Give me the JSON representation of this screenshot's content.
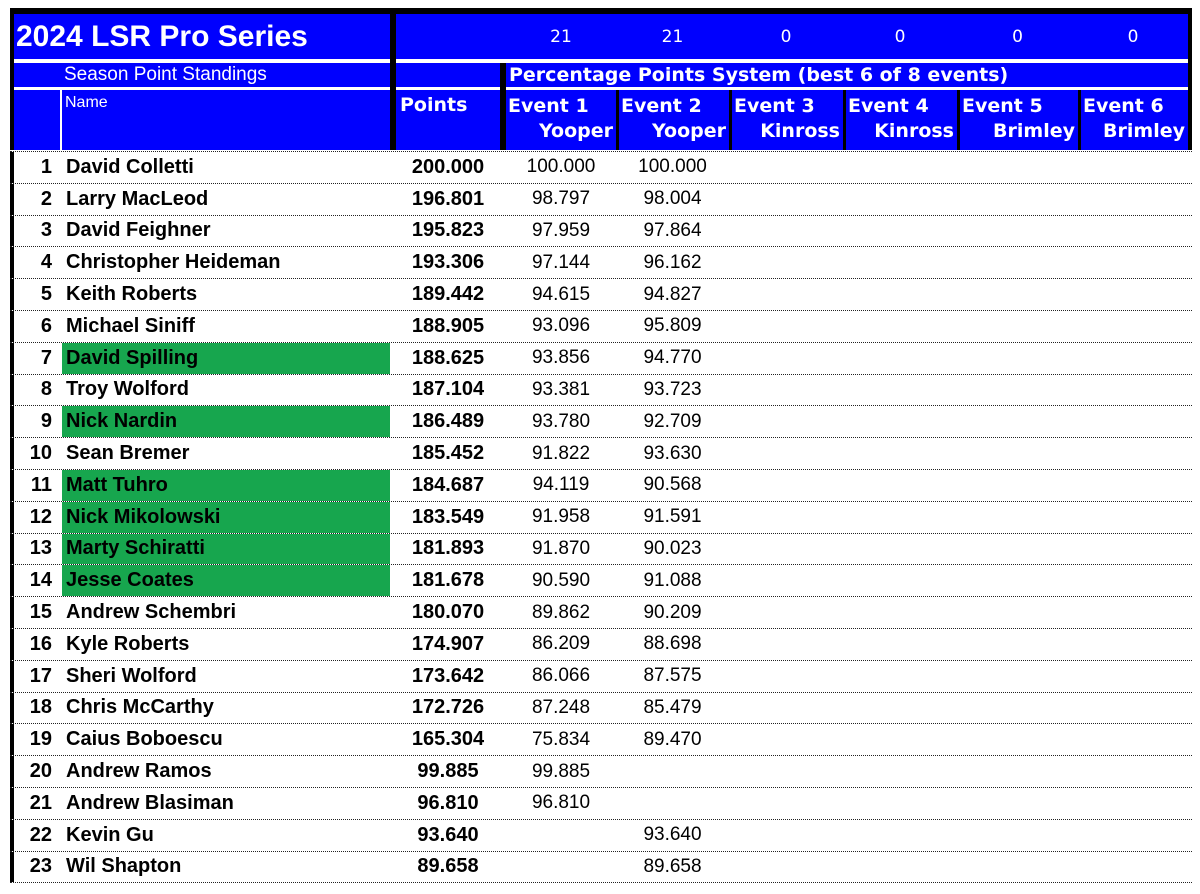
{
  "title": "2024 LSR Pro Series",
  "header": {
    "counts": [
      "21",
      "21",
      "0",
      "0",
      "0",
      "0"
    ],
    "season_label": "Season Point Standings",
    "system_label": "Percentage Points System (best 6 of 8 events)",
    "name_col": "Name",
    "points_col": "Points",
    "events": [
      {
        "num": "Event 1",
        "venue": "Yooper"
      },
      {
        "num": "Event 2",
        "venue": "Yooper"
      },
      {
        "num": "Event 3",
        "venue": "Kinross"
      },
      {
        "num": "Event 4",
        "venue": "Kinross"
      },
      {
        "num": "Event 5",
        "venue": "Brimley"
      },
      {
        "num": "Event 6",
        "venue": "Brimley"
      }
    ]
  },
  "colors": {
    "header_blue": "#0000fe",
    "highlight_green": "#17a64e",
    "border_black": "#000000",
    "text_white": "#ffffff"
  },
  "standings": [
    {
      "rank": "1",
      "name": "David Colletti",
      "points": "200.000",
      "events": [
        "100.000",
        "100.000",
        "",
        "",
        "",
        ""
      ],
      "highlight": false
    },
    {
      "rank": "2",
      "name": "Larry MacLeod",
      "points": "196.801",
      "events": [
        "98.797",
        "98.004",
        "",
        "",
        "",
        ""
      ],
      "highlight": false
    },
    {
      "rank": "3",
      "name": "David Feighner",
      "points": "195.823",
      "events": [
        "97.959",
        "97.864",
        "",
        "",
        "",
        ""
      ],
      "highlight": false
    },
    {
      "rank": "4",
      "name": "Christopher Heideman",
      "points": "193.306",
      "events": [
        "97.144",
        "96.162",
        "",
        "",
        "",
        ""
      ],
      "highlight": false
    },
    {
      "rank": "5",
      "name": "Keith Roberts",
      "points": "189.442",
      "events": [
        "94.615",
        "94.827",
        "",
        "",
        "",
        ""
      ],
      "highlight": false
    },
    {
      "rank": "6",
      "name": "Michael Siniff",
      "points": "188.905",
      "events": [
        "93.096",
        "95.809",
        "",
        "",
        "",
        ""
      ],
      "highlight": false
    },
    {
      "rank": "7",
      "name": "David Spilling",
      "points": "188.625",
      "events": [
        "93.856",
        "94.770",
        "",
        "",
        "",
        ""
      ],
      "highlight": true
    },
    {
      "rank": "8",
      "name": "Troy Wolford",
      "points": "187.104",
      "events": [
        "93.381",
        "93.723",
        "",
        "",
        "",
        ""
      ],
      "highlight": false
    },
    {
      "rank": "9",
      "name": "Nick Nardin",
      "points": "186.489",
      "events": [
        "93.780",
        "92.709",
        "",
        "",
        "",
        ""
      ],
      "highlight": true
    },
    {
      "rank": "10",
      "name": "Sean Bremer",
      "points": "185.452",
      "events": [
        "91.822",
        "93.630",
        "",
        "",
        "",
        ""
      ],
      "highlight": false
    },
    {
      "rank": "11",
      "name": "Matt Tuhro",
      "points": "184.687",
      "events": [
        "94.119",
        "90.568",
        "",
        "",
        "",
        ""
      ],
      "highlight": true
    },
    {
      "rank": "12",
      "name": "Nick Mikolowski",
      "points": "183.549",
      "events": [
        "91.958",
        "91.591",
        "",
        "",
        "",
        ""
      ],
      "highlight": true
    },
    {
      "rank": "13",
      "name": "Marty Schiratti",
      "points": "181.893",
      "events": [
        "91.870",
        "90.023",
        "",
        "",
        "",
        ""
      ],
      "highlight": true
    },
    {
      "rank": "14",
      "name": "Jesse Coates",
      "points": "181.678",
      "events": [
        "90.590",
        "91.088",
        "",
        "",
        "",
        ""
      ],
      "highlight": true
    },
    {
      "rank": "15",
      "name": "Andrew Schembri",
      "points": "180.070",
      "events": [
        "89.862",
        "90.209",
        "",
        "",
        "",
        ""
      ],
      "highlight": false
    },
    {
      "rank": "16",
      "name": "Kyle Roberts",
      "points": "174.907",
      "events": [
        "86.209",
        "88.698",
        "",
        "",
        "",
        ""
      ],
      "highlight": false
    },
    {
      "rank": "17",
      "name": "Sheri Wolford",
      "points": "173.642",
      "events": [
        "86.066",
        "87.575",
        "",
        "",
        "",
        ""
      ],
      "highlight": false
    },
    {
      "rank": "18",
      "name": "Chris McCarthy",
      "points": "172.726",
      "events": [
        "87.248",
        "85.479",
        "",
        "",
        "",
        ""
      ],
      "highlight": false
    },
    {
      "rank": "19",
      "name": "Caius Boboescu",
      "points": "165.304",
      "events": [
        "75.834",
        "89.470",
        "",
        "",
        "",
        ""
      ],
      "highlight": false
    },
    {
      "rank": "20",
      "name": "Andrew Ramos",
      "points": "99.885",
      "events": [
        "99.885",
        "",
        "",
        "",
        "",
        ""
      ],
      "highlight": false
    },
    {
      "rank": "21",
      "name": "Andrew Blasiman",
      "points": "96.810",
      "events": [
        "96.810",
        "",
        "",
        "",
        "",
        ""
      ],
      "highlight": false
    },
    {
      "rank": "22",
      "name": "Kevin Gu",
      "points": "93.640",
      "events": [
        "",
        "93.640",
        "",
        "",
        "",
        ""
      ],
      "highlight": false
    },
    {
      "rank": "23",
      "name": "Wil Shapton",
      "points": "89.658",
      "events": [
        "",
        "89.658",
        "",
        "",
        "",
        ""
      ],
      "highlight": false
    }
  ]
}
